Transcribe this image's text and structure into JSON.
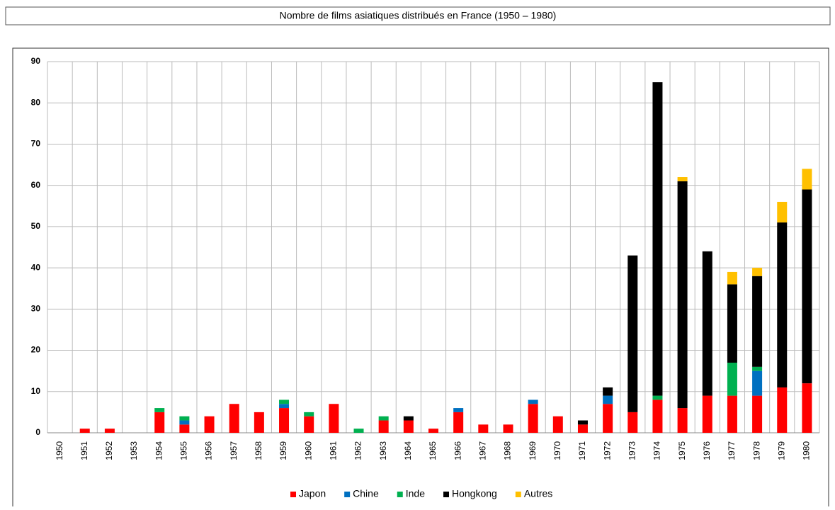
{
  "chart_data": {
    "type": "bar",
    "stacked": true,
    "title": "Nombre de films asiatiques distribués en France (1950 – 1980)",
    "categories": [
      "1950",
      "1951",
      "1952",
      "1953",
      "1954",
      "1955",
      "1956",
      "1957",
      "1958",
      "1959",
      "1960",
      "1961",
      "1962",
      "1963",
      "1964",
      "1965",
      "1966",
      "1967",
      "1968",
      "1969",
      "1970",
      "1971",
      "1972",
      "1973",
      "1974",
      "1975",
      "1976",
      "1977",
      "1978",
      "1979",
      "1980"
    ],
    "series": [
      {
        "name": "Japon",
        "color": "#ff0000",
        "values": [
          0,
          1,
          1,
          0,
          5,
          2,
          4,
          7,
          5,
          6,
          4,
          7,
          0,
          3,
          3,
          1,
          5,
          2,
          2,
          7,
          4,
          2,
          7,
          5,
          8,
          6,
          9,
          9,
          9,
          11,
          12
        ]
      },
      {
        "name": "Chine",
        "color": "#0070c0",
        "values": [
          0,
          0,
          0,
          0,
          0,
          1,
          0,
          0,
          0,
          1,
          0,
          0,
          0,
          0,
          0,
          0,
          1,
          0,
          0,
          1,
          0,
          0,
          2,
          0,
          0,
          0,
          0,
          0,
          6,
          0,
          0
        ]
      },
      {
        "name": "Inde",
        "color": "#00b050",
        "values": [
          0,
          0,
          0,
          0,
          1,
          1,
          0,
          0,
          0,
          1,
          1,
          0,
          1,
          1,
          0,
          0,
          0,
          0,
          0,
          0,
          0,
          0,
          0,
          0,
          1,
          0,
          0,
          8,
          1,
          0,
          0
        ]
      },
      {
        "name": "Hongkong",
        "color": "#000000",
        "values": [
          0,
          0,
          0,
          0,
          0,
          0,
          0,
          0,
          0,
          0,
          0,
          0,
          0,
          0,
          1,
          0,
          0,
          0,
          0,
          0,
          0,
          1,
          2,
          38,
          76,
          55,
          35,
          19,
          22,
          40,
          47
        ]
      },
      {
        "name": "Autres",
        "color": "#ffc000",
        "values": [
          0,
          0,
          0,
          0,
          0,
          0,
          0,
          0,
          0,
          0,
          0,
          0,
          0,
          0,
          0,
          0,
          0,
          0,
          0,
          0,
          0,
          0,
          0,
          0,
          0,
          1,
          0,
          3,
          2,
          5,
          5
        ]
      }
    ],
    "ylim": [
      0,
      90
    ],
    "yticks": [
      0,
      10,
      20,
      30,
      40,
      50,
      60,
      70,
      80,
      90
    ],
    "grid": true
  }
}
